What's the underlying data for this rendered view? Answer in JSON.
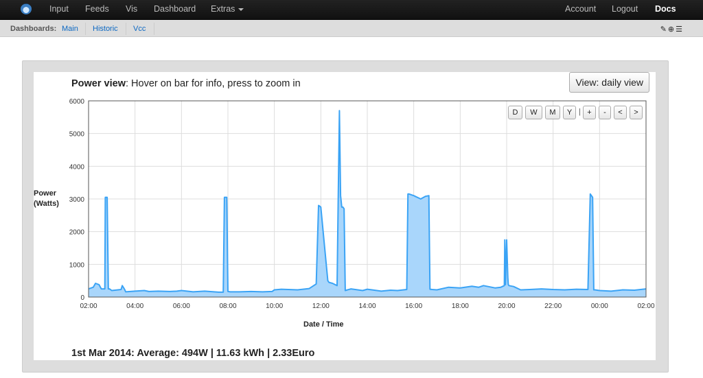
{
  "nav": {
    "left": [
      "Input",
      "Feeds",
      "Vis",
      "Dashboard",
      "Extras"
    ],
    "right": [
      "Account",
      "Logout",
      "Docs"
    ]
  },
  "dashboards": {
    "label": "Dashboards:",
    "items": [
      "Main",
      "Historic",
      "Vcc"
    ],
    "icons": [
      "edit-icon",
      "add-icon",
      "list-icon"
    ]
  },
  "widget": {
    "title_bold": "Power view",
    "title_rest": ": Hover on bar for info, press to zoom in",
    "view_button": "View: daily view",
    "zoom_buttons": [
      "D",
      "W",
      "M",
      "Y",
      "|",
      "+",
      "-",
      "<",
      ">"
    ],
    "stats": "1st Mar 2014: Average: 494W | 11.63 kWh | 2.33Euro"
  },
  "chart_data": {
    "type": "area",
    "ylabel": "Power (Watts)",
    "xlabel": "Date / Time",
    "ylim": [
      0,
      6000
    ],
    "yticks": [
      0,
      1000,
      2000,
      3000,
      4000,
      5000,
      6000
    ],
    "xticks": [
      "02:00",
      "04:00",
      "06:00",
      "08:00",
      "10:00",
      "12:00",
      "14:00",
      "16:00",
      "18:00",
      "20:00",
      "22:00",
      "00:00",
      "02:00"
    ],
    "x_hours_range": [
      2,
      26
    ],
    "grid": true,
    "color": "#3aa3f5",
    "fill": "#a9d6fb",
    "x": [
      2.0,
      2.2,
      2.3,
      2.45,
      2.55,
      2.7,
      2.72,
      2.8,
      2.85,
      2.9,
      3.0,
      3.4,
      3.45,
      3.55,
      3.6,
      4.0,
      4.4,
      4.6,
      5.0,
      5.5,
      5.8,
      6.0,
      6.5,
      7.0,
      7.6,
      7.8,
      7.85,
      7.95,
      8.0,
      8.1,
      8.5,
      9.0,
      9.5,
      9.9,
      10.0,
      10.3,
      10.6,
      11.0,
      11.5,
      11.8,
      11.9,
      11.95,
      12.0,
      12.3,
      12.35,
      12.5,
      12.7,
      12.75,
      12.8,
      12.85,
      12.9,
      12.95,
      13.0,
      13.05,
      13.15,
      13.3,
      13.8,
      14.0,
      14.2,
      14.6,
      15.0,
      15.3,
      15.7,
      15.75,
      15.8,
      16.0,
      16.3,
      16.5,
      16.65,
      16.7,
      16.8,
      17.0,
      17.5,
      18.0,
      18.5,
      18.8,
      19.0,
      19.5,
      19.75,
      19.9,
      19.92,
      19.95,
      20.0,
      20.05,
      20.07,
      20.1,
      20.3,
      20.6,
      21.0,
      21.5,
      22.0,
      22.5,
      23.0,
      23.5,
      23.6,
      23.65,
      23.7,
      23.75,
      23.8,
      24.0,
      24.5,
      25.0,
      25.5,
      26.0
    ],
    "y": [
      250,
      300,
      420,
      380,
      250,
      250,
      3050,
      3050,
      250,
      250,
      200,
      230,
      350,
      240,
      160,
      180,
      200,
      170,
      180,
      170,
      180,
      200,
      160,
      180,
      150,
      150,
      3050,
      3050,
      170,
      160,
      160,
      170,
      160,
      170,
      220,
      240,
      230,
      220,
      260,
      400,
      2800,
      2780,
      2750,
      500,
      450,
      420,
      350,
      3100,
      5700,
      3100,
      2750,
      2750,
      2700,
      200,
      220,
      250,
      200,
      240,
      220,
      180,
      210,
      200,
      230,
      3150,
      3150,
      3100,
      3000,
      3080,
      3100,
      240,
      230,
      220,
      300,
      280,
      330,
      300,
      350,
      280,
      300,
      350,
      1750,
      380,
      1750,
      600,
      380,
      350,
      320,
      220,
      230,
      250,
      230,
      220,
      240,
      230,
      3150,
      3100,
      3050,
      220,
      220,
      200,
      180,
      220,
      210,
      250
    ]
  }
}
